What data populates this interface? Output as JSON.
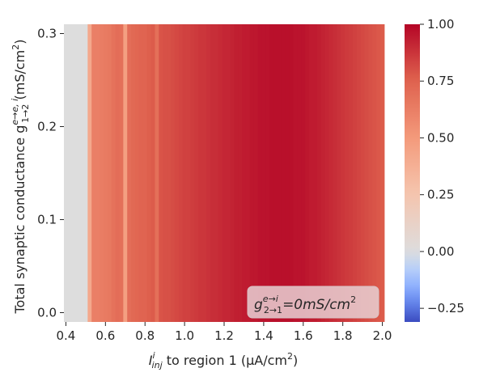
{
  "chart_data": {
    "type": "heatmap",
    "colormap": "coolwarm",
    "x_range": [
      0.4,
      2.0
    ],
    "x_ticks": [
      "0.4",
      "0.6",
      "0.8",
      "1.0",
      "1.2",
      "1.4",
      "1.6",
      "1.8",
      "2.0"
    ],
    "y_range": [
      0.0,
      0.31
    ],
    "y_ticks": [
      "0.0",
      "0.1",
      "0.2",
      "0.3"
    ],
    "colorbar_range": [
      -0.31,
      1.0
    ],
    "colorbar_ticks": [
      "1.00",
      "0.75",
      "0.50",
      "0.25",
      "0.00",
      "−0.25"
    ],
    "xlabel": {
      "prefix": "I",
      "sub": "inj",
      "sup": "i",
      "suffix": " to region 1 (μA/cm",
      "unit_sup": "2",
      "close": ")"
    },
    "ylabel": {
      "prefix": "Total synaptic conductance g",
      "sub": "1→2",
      "sup": "e→e, i",
      "suffix": " (mS/cm",
      "unit_sup": "2",
      "close": ")"
    },
    "annotation": {
      "prefix": "g",
      "sub": "2→1",
      "sup": "e→i",
      "suffix": "=0mS/cm",
      "unit_sup": "2"
    },
    "grid": false,
    "columns": [
      {
        "x": 0.4,
        "v": 0.0
      },
      {
        "x": 0.42,
        "v": 0.0
      },
      {
        "x": 0.44,
        "v": 0.0
      },
      {
        "x": 0.46,
        "v": 0.0
      },
      {
        "x": 0.48,
        "v": 0.0
      },
      {
        "x": 0.5,
        "v": 0.0
      },
      {
        "x": 0.52,
        "v": 0.42
      },
      {
        "x": 0.54,
        "v": 0.62
      },
      {
        "x": 0.56,
        "v": 0.62
      },
      {
        "x": 0.58,
        "v": 0.63
      },
      {
        "x": 0.6,
        "v": 0.64
      },
      {
        "x": 0.62,
        "v": 0.65
      },
      {
        "x": 0.64,
        "v": 0.68
      },
      {
        "x": 0.66,
        "v": 0.7
      },
      {
        "x": 0.68,
        "v": 0.69
      },
      {
        "x": 0.7,
        "v": 0.47
      },
      {
        "x": 0.72,
        "v": 0.7
      },
      {
        "x": 0.74,
        "v": 0.72
      },
      {
        "x": 0.76,
        "v": 0.73
      },
      {
        "x": 0.78,
        "v": 0.74
      },
      {
        "x": 0.8,
        "v": 0.74
      },
      {
        "x": 0.82,
        "v": 0.76
      },
      {
        "x": 0.84,
        "v": 0.77
      },
      {
        "x": 0.86,
        "v": 0.69
      },
      {
        "x": 0.88,
        "v": 0.79
      },
      {
        "x": 0.9,
        "v": 0.8
      },
      {
        "x": 0.92,
        "v": 0.8
      },
      {
        "x": 0.94,
        "v": 0.81
      },
      {
        "x": 0.96,
        "v": 0.82
      },
      {
        "x": 0.98,
        "v": 0.83
      },
      {
        "x": 1.0,
        "v": 0.84
      },
      {
        "x": 1.02,
        "v": 0.84
      },
      {
        "x": 1.04,
        "v": 0.85
      },
      {
        "x": 1.06,
        "v": 0.86
      },
      {
        "x": 1.08,
        "v": 0.87
      },
      {
        "x": 1.1,
        "v": 0.87
      },
      {
        "x": 1.12,
        "v": 0.88
      },
      {
        "x": 1.14,
        "v": 0.89
      },
      {
        "x": 1.16,
        "v": 0.89
      },
      {
        "x": 1.18,
        "v": 0.9
      },
      {
        "x": 1.2,
        "v": 0.91
      },
      {
        "x": 1.22,
        "v": 0.91
      },
      {
        "x": 1.24,
        "v": 0.92
      },
      {
        "x": 1.26,
        "v": 0.93
      },
      {
        "x": 1.28,
        "v": 0.93
      },
      {
        "x": 1.3,
        "v": 0.94
      },
      {
        "x": 1.32,
        "v": 0.94
      },
      {
        "x": 1.34,
        "v": 0.95
      },
      {
        "x": 1.36,
        "v": 0.95
      },
      {
        "x": 1.38,
        "v": 0.96
      },
      {
        "x": 1.4,
        "v": 0.96
      },
      {
        "x": 1.42,
        "v": 0.96
      },
      {
        "x": 1.44,
        "v": 0.97
      },
      {
        "x": 1.46,
        "v": 0.97
      },
      {
        "x": 1.48,
        "v": 0.97
      },
      {
        "x": 1.5,
        "v": 0.97
      },
      {
        "x": 1.52,
        "v": 0.97
      },
      {
        "x": 1.54,
        "v": 0.97
      },
      {
        "x": 1.56,
        "v": 0.96
      },
      {
        "x": 1.58,
        "v": 0.96
      },
      {
        "x": 1.6,
        "v": 0.96
      },
      {
        "x": 1.62,
        "v": 0.95
      },
      {
        "x": 1.64,
        "v": 0.94
      },
      {
        "x": 1.66,
        "v": 0.94
      },
      {
        "x": 1.68,
        "v": 0.93
      },
      {
        "x": 1.7,
        "v": 0.92
      },
      {
        "x": 1.72,
        "v": 0.91
      },
      {
        "x": 1.74,
        "v": 0.9
      },
      {
        "x": 1.76,
        "v": 0.89
      },
      {
        "x": 1.78,
        "v": 0.88
      },
      {
        "x": 1.8,
        "v": 0.87
      },
      {
        "x": 1.82,
        "v": 0.86
      },
      {
        "x": 1.84,
        "v": 0.85
      },
      {
        "x": 1.86,
        "v": 0.84
      },
      {
        "x": 1.88,
        "v": 0.83
      },
      {
        "x": 1.9,
        "v": 0.82
      },
      {
        "x": 1.92,
        "v": 0.81
      },
      {
        "x": 1.94,
        "v": 0.8
      },
      {
        "x": 1.96,
        "v": 0.79
      },
      {
        "x": 1.98,
        "v": 0.78
      },
      {
        "x": 2.0,
        "v": 0.77
      }
    ]
  }
}
